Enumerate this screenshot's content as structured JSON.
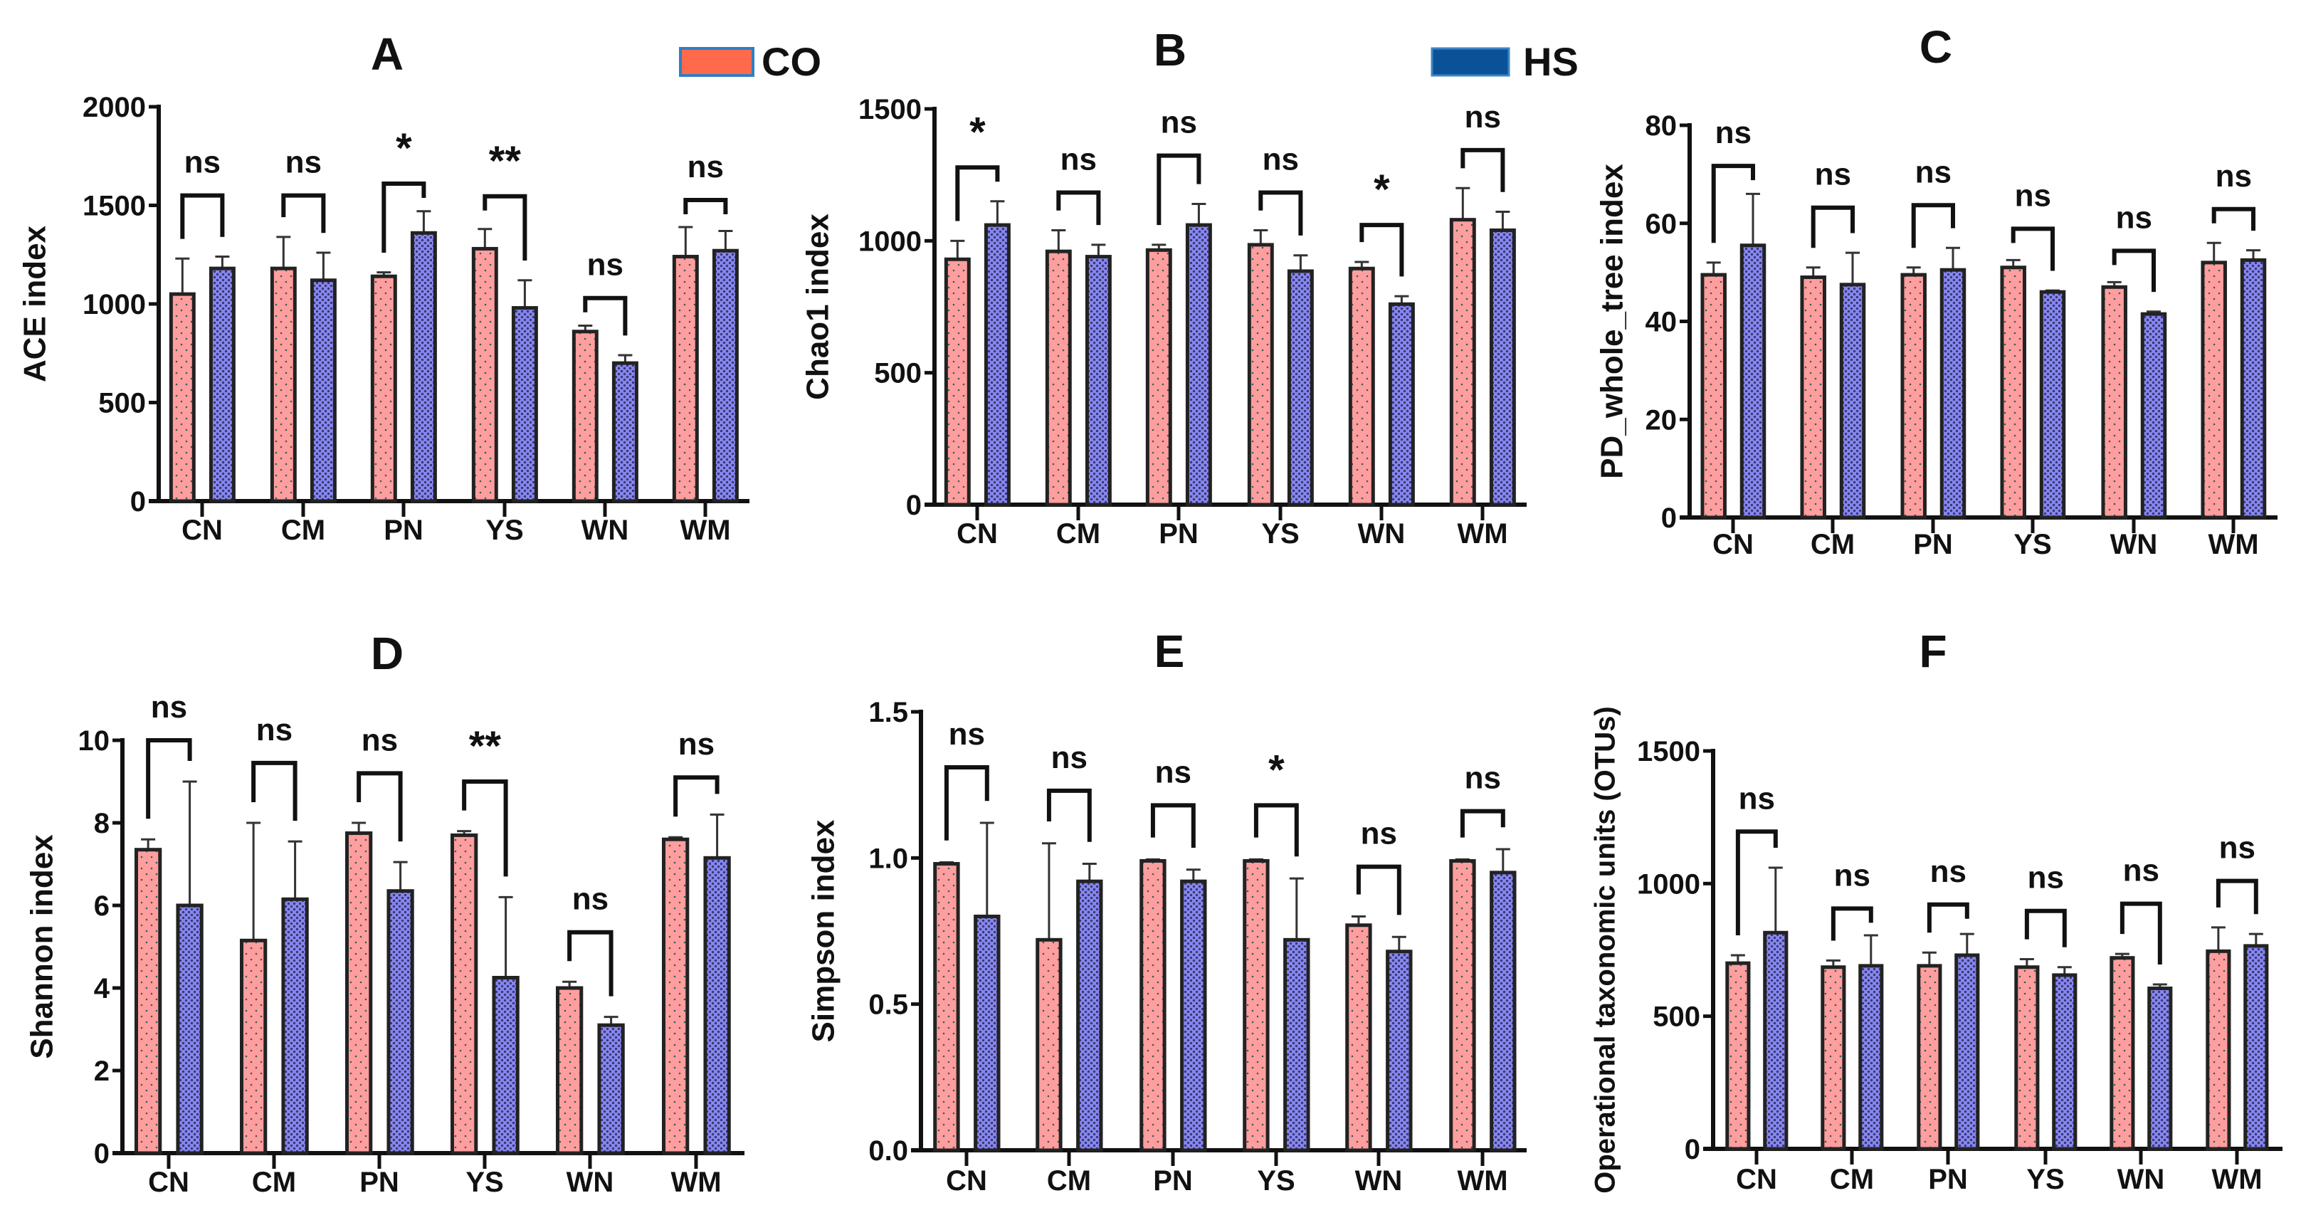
{
  "legend": [
    {
      "label": "CO",
      "color": "#FF6A4D",
      "border": "#2F7FC0"
    },
    {
      "label": "HS",
      "color": "#0B5197",
      "border": "#3A86C6"
    }
  ],
  "series_colors": {
    "CO": "#FF9E9E",
    "HS": "#8383EE",
    "outline": "#222222"
  },
  "chart_data": [
    {
      "type": "bar",
      "title": "A",
      "ylabel": "ACE index",
      "ylim": [
        0,
        2000
      ],
      "yticks": [
        0,
        500,
        1000,
        1500,
        2000
      ],
      "ytick_labels": [
        "0",
        "500",
        "1000",
        "1500",
        "2000"
      ],
      "categories": [
        "CN",
        "CM",
        "PN",
        "YS",
        "WN",
        "WM"
      ],
      "series": [
        {
          "name": "CO",
          "values": [
            1050,
            1180,
            1140,
            1280,
            860,
            1240
          ],
          "error_upper": [
            1230,
            1340,
            1160,
            1380,
            890,
            1390
          ]
        },
        {
          "name": "HS",
          "values": [
            1180,
            1120,
            1360,
            980,
            700,
            1270
          ],
          "error_upper": [
            1240,
            1260,
            1470,
            1120,
            740,
            1370
          ]
        }
      ],
      "significance": [
        {
          "label": "ns",
          "bracket_y": 1550
        },
        {
          "label": "ns",
          "bracket_y": 1550
        },
        {
          "label": "*",
          "bracket_y": 1610
        },
        {
          "label": "**",
          "bracket_y": 1546
        },
        {
          "label": "ns",
          "bracket_y": 1030
        },
        {
          "label": "ns",
          "bracket_y": 1527
        }
      ]
    },
    {
      "type": "bar",
      "title": "B",
      "ylabel": "Chao1 index",
      "ylim": [
        0,
        1500
      ],
      "yticks": [
        0,
        500,
        1000,
        1500
      ],
      "ytick_labels": [
        "0",
        "500",
        "1000",
        "1500"
      ],
      "categories": [
        "CN",
        "CM",
        "PN",
        "YS",
        "WN",
        "WM"
      ],
      "series": [
        {
          "name": "CO",
          "values": [
            930,
            960,
            965,
            985,
            895,
            1080
          ],
          "error_upper": [
            1000,
            1040,
            985,
            1040,
            920,
            1200
          ]
        },
        {
          "name": "HS",
          "values": [
            1060,
            940,
            1060,
            885,
            760,
            1040
          ],
          "error_upper": [
            1150,
            985,
            1140,
            945,
            790,
            1110
          ]
        }
      ],
      "significance": [
        {
          "label": "*",
          "bracket_y": 1278
        },
        {
          "label": "ns",
          "bracket_y": 1183
        },
        {
          "label": "ns",
          "bracket_y": 1323
        },
        {
          "label": "ns",
          "bracket_y": 1183
        },
        {
          "label": "*",
          "bracket_y": 1060
        },
        {
          "label": "ns",
          "bracket_y": 1344
        }
      ]
    },
    {
      "type": "bar",
      "title": "C",
      "ylabel": "PD_whole_tree index",
      "ylim": [
        0,
        80
      ],
      "yticks": [
        0,
        20,
        40,
        60,
        80
      ],
      "ytick_labels": [
        "0",
        "20",
        "40",
        "60",
        "80"
      ],
      "categories": [
        "CN",
        "CM",
        "PN",
        "YS",
        "WN",
        "WM"
      ],
      "series": [
        {
          "name": "CO",
          "values": [
            49.5,
            49,
            49.5,
            51,
            47,
            52
          ],
          "error_upper": [
            52,
            51,
            51,
            52.5,
            48,
            56
          ]
        },
        {
          "name": "HS",
          "values": [
            55.5,
            47.5,
            50.5,
            46,
            41.5,
            52.5
          ],
          "error_upper": [
            66,
            54,
            55,
            46.3,
            42,
            54.5
          ]
        }
      ],
      "significance": [
        {
          "label": "ns",
          "bracket_y": 71.7
        },
        {
          "label": "ns",
          "bracket_y": 63.2
        },
        {
          "label": "ns",
          "bracket_y": 63.7
        },
        {
          "label": "ns",
          "bracket_y": 58.9
        },
        {
          "label": "ns",
          "bracket_y": 54.4
        },
        {
          "label": "ns",
          "bracket_y": 62.9
        }
      ]
    },
    {
      "type": "bar",
      "title": "D",
      "ylabel": "Shannon index",
      "ylim": [
        0,
        10
      ],
      "yticks": [
        0,
        2,
        4,
        6,
        8,
        10
      ],
      "ytick_labels": [
        "0",
        "2",
        "4",
        "6",
        "8",
        "10"
      ],
      "categories": [
        "CN",
        "CM",
        "PN",
        "YS",
        "WN",
        "WM"
      ],
      "series": [
        {
          "name": "CO",
          "values": [
            7.35,
            5.15,
            7.75,
            7.7,
            4.0,
            7.6
          ],
          "error_upper": [
            7.6,
            8.0,
            8.0,
            7.8,
            4.15,
            7.65
          ]
        },
        {
          "name": "HS",
          "values": [
            6.0,
            6.15,
            6.35,
            4.25,
            3.1,
            7.15
          ],
          "error_upper": [
            9.0,
            7.55,
            7.05,
            6.2,
            3.3,
            8.2
          ]
        }
      ],
      "significance": [
        {
          "label": "ns",
          "bracket_y": 10.0
        },
        {
          "label": "ns",
          "bracket_y": 9.45
        },
        {
          "label": "ns",
          "bracket_y": 9.2
        },
        {
          "label": "**",
          "bracket_y": 9.0
        },
        {
          "label": "ns",
          "bracket_y": 5.35
        },
        {
          "label": "ns",
          "bracket_y": 9.1
        }
      ]
    },
    {
      "type": "bar",
      "title": "E",
      "ylabel": "Simpson index",
      "ylim": [
        0,
        1.5
      ],
      "yticks": [
        0,
        0.5,
        1.0,
        1.5
      ],
      "ytick_labels": [
        "0.0",
        "0.5",
        "1.0",
        "1.5"
      ],
      "categories": [
        "CN",
        "CM",
        "PN",
        "YS",
        "WN",
        "WM"
      ],
      "series": [
        {
          "name": "CO",
          "values": [
            0.98,
            0.72,
            0.99,
            0.99,
            0.77,
            0.99
          ],
          "error_upper": [
            0.985,
            1.05,
            0.995,
            0.995,
            0.8,
            0.995
          ]
        },
        {
          "name": "HS",
          "values": [
            0.8,
            0.92,
            0.92,
            0.72,
            0.68,
            0.95
          ],
          "error_upper": [
            1.12,
            0.98,
            0.96,
            0.93,
            0.73,
            1.03
          ]
        }
      ],
      "significance": [
        {
          "label": "ns",
          "bracket_y": 1.31
        },
        {
          "label": "ns",
          "bracket_y": 1.23
        },
        {
          "label": "ns",
          "bracket_y": 1.18
        },
        {
          "label": "*",
          "bracket_y": 1.18
        },
        {
          "label": "ns",
          "bracket_y": 0.97
        },
        {
          "label": "ns",
          "bracket_y": 1.16
        }
      ]
    },
    {
      "type": "bar",
      "title": "F",
      "ylabel": "Operational taxonomic units (OTUs)",
      "ylim": [
        0,
        1500
      ],
      "yticks": [
        0,
        500,
        1000,
        1500
      ],
      "ytick_labels": [
        "0",
        "500",
        "1000",
        "1500"
      ],
      "categories": [
        "CN",
        "CM",
        "PN",
        "YS",
        "WN",
        "WM"
      ],
      "series": [
        {
          "name": "CO",
          "values": [
            700,
            685,
            690,
            685,
            720,
            745
          ],
          "error_upper": [
            730,
            710,
            740,
            715,
            735,
            835
          ]
        },
        {
          "name": "HS",
          "values": [
            815,
            690,
            730,
            655,
            605,
            765
          ],
          "error_upper": [
            1060,
            805,
            810,
            685,
            620,
            810
          ]
        }
      ],
      "significance": [
        {
          "label": "ns",
          "bracket_y": 1196
        },
        {
          "label": "ns",
          "bracket_y": 906
        },
        {
          "label": "ns",
          "bracket_y": 921
        },
        {
          "label": "ns",
          "bracket_y": 897
        },
        {
          "label": "ns",
          "bracket_y": 924
        },
        {
          "label": "ns",
          "bracket_y": 1010
        }
      ]
    }
  ]
}
